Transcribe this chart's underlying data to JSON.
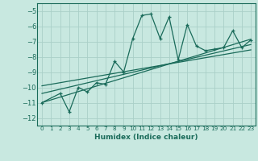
{
  "xlabel": "Humidex (Indice chaleur)",
  "bg_color": "#c8e8e0",
  "grid_color": "#aacfc8",
  "line_color": "#1a6b5a",
  "xlim": [
    -0.5,
    23.5
  ],
  "ylim": [
    -12.5,
    -4.5
  ],
  "xticks": [
    0,
    1,
    2,
    3,
    4,
    5,
    6,
    7,
    8,
    9,
    10,
    11,
    12,
    13,
    14,
    15,
    16,
    17,
    18,
    19,
    20,
    21,
    22,
    23
  ],
  "yticks": [
    -12,
    -11,
    -10,
    -9,
    -8,
    -7,
    -6,
    -5
  ],
  "data_x": [
    0,
    2,
    3,
    4,
    5,
    6,
    7,
    8,
    9,
    10,
    11,
    12,
    13,
    14,
    15,
    16,
    17,
    18,
    19,
    20,
    21,
    22,
    23
  ],
  "data_y": [
    -11.0,
    -10.4,
    -11.6,
    -10.0,
    -10.3,
    -9.7,
    -9.8,
    -8.3,
    -9.0,
    -6.8,
    -5.3,
    -5.2,
    -6.8,
    -5.4,
    -8.2,
    -5.9,
    -7.3,
    -7.6,
    -7.5,
    -7.4,
    -6.3,
    -7.4,
    -6.9
  ],
  "line1_x": [
    0,
    23
  ],
  "line1_y": [
    -11.0,
    -6.85
  ],
  "line2_x": [
    0,
    23
  ],
  "line2_y": [
    -10.4,
    -7.2
  ],
  "line3_x": [
    0,
    23
  ],
  "line3_y": [
    -9.9,
    -7.55
  ]
}
